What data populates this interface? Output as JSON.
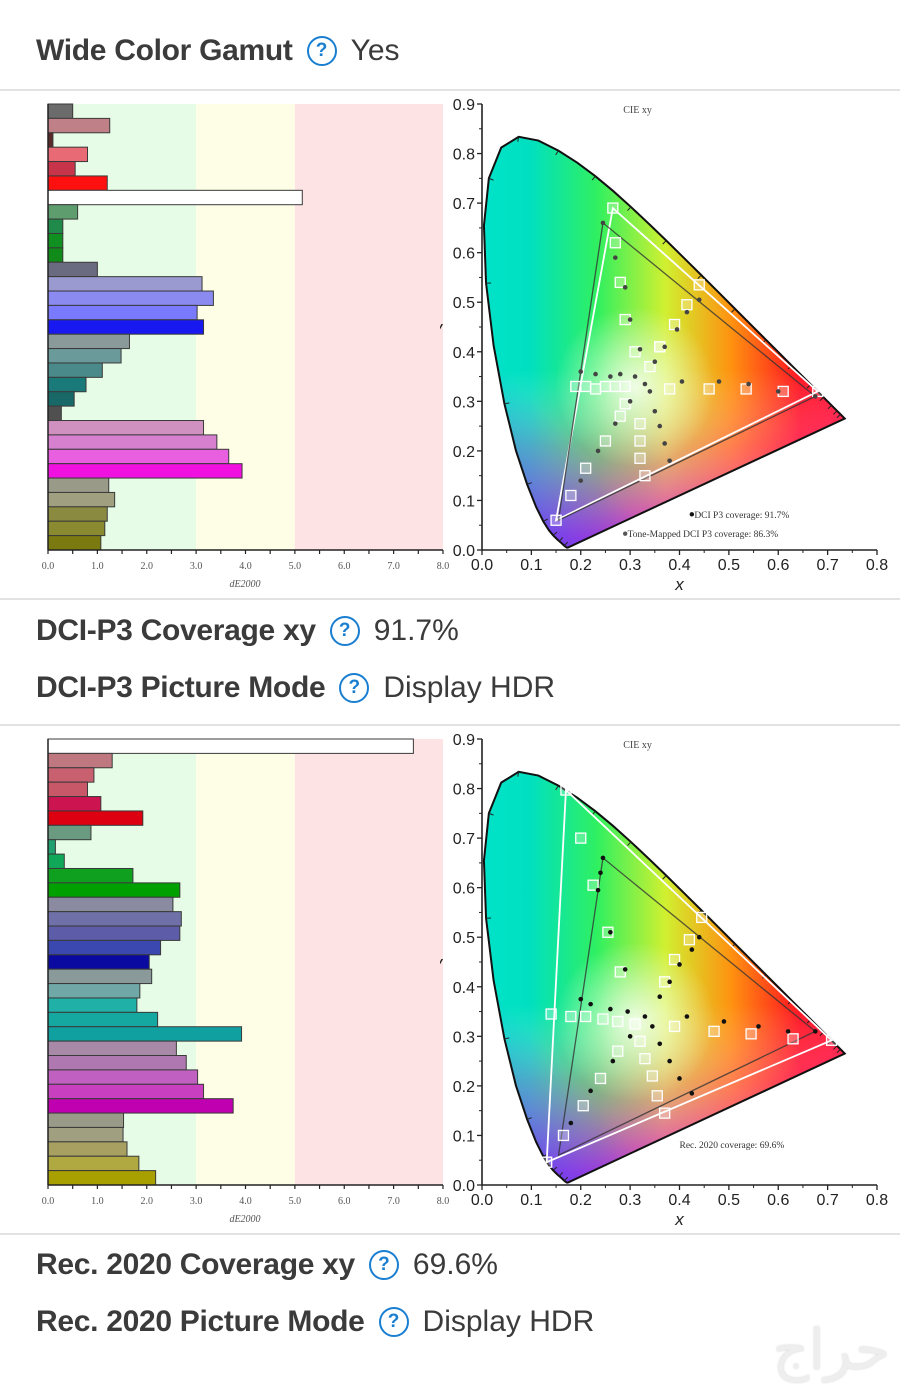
{
  "rows": {
    "wide_color_gamut": {
      "label": "Wide Color Gamut",
      "help_icon": "question-circle-icon",
      "value": "Yes"
    },
    "dci_p3_coverage": {
      "label": "DCI-P3 Coverage xy",
      "help_icon": "question-circle-icon",
      "value": "91.7%"
    },
    "dci_p3_picture_mode": {
      "label": "DCI-P3 Picture Mode",
      "help_icon": "question-circle-icon",
      "value": "Display HDR"
    },
    "rec2020_coverage": {
      "label": "Rec. 2020 Coverage xy",
      "help_icon": "question-circle-icon",
      "value": "69.6%"
    },
    "rec2020_picture_mode": {
      "label": "Rec. 2020 Picture Mode",
      "help_icon": "question-circle-icon",
      "value": "Display HDR"
    }
  },
  "colors": {
    "accent": "#1a7fd0",
    "zone_good": "#e6fce6",
    "zone_ok": "#fefee6",
    "zone_bad": "#fde3e3"
  },
  "watermark": "حراج",
  "chart_data": [
    {
      "type": "bar",
      "orientation": "horizontal",
      "title": "",
      "xlabel": "dE2000",
      "ylabel": "",
      "xlim": [
        0,
        8
      ],
      "xticks": [
        "0.0",
        "1.0",
        "2.0",
        "3.0",
        "4.0",
        "5.0",
        "6.0",
        "7.0",
        "8.0"
      ],
      "zones": [
        {
          "from": 0,
          "to": 3,
          "color": "#e6fce6"
        },
        {
          "from": 3,
          "to": 5,
          "color": "#fefee6"
        },
        {
          "from": 5,
          "to": 8,
          "color": "#fde3e3"
        }
      ],
      "values": [
        0.5,
        1.25,
        0.1,
        0.8,
        0.55,
        1.2,
        5.15,
        0.6,
        0.3,
        0.3,
        0.3,
        1.0,
        3.12,
        3.35,
        3.02,
        3.15,
        1.65,
        1.48,
        1.1,
        0.77,
        0.53,
        0.27,
        3.15,
        3.42,
        3.66,
        3.93,
        1.23,
        1.35,
        1.2,
        1.15,
        1.07
      ],
      "bar_colors": [
        "#6b6b6b",
        "#c08088",
        "#5a2a2a",
        "#e86a74",
        "#c8344a",
        "#ff1010",
        "#ffffff",
        "#5e9e6e",
        "#208a4a",
        "#109020",
        "#108a18",
        "#6a6a80",
        "#9a9ad0",
        "#8a8af0",
        "#7a7aff",
        "#1818f0",
        "#8a9a9a",
        "#6a9a9a",
        "#4a8a8a",
        "#1a7a7a",
        "#186868",
        "#505050",
        "#d090c0",
        "#d880d0",
        "#e860e0",
        "#f010e0",
        "#9a9a88",
        "#a0a080",
        "#8a8a40",
        "#8a8a30",
        "#7a7a10"
      ]
    },
    {
      "type": "scatter",
      "title": "CIE xy",
      "xlabel": "x",
      "ylabel": "y",
      "xlim": [
        0,
        0.8
      ],
      "ylim": [
        0,
        0.9
      ],
      "xticks": [
        "0.0",
        "0.1",
        "0.2",
        "0.3",
        "0.4",
        "0.5",
        "0.6",
        "0.7",
        "0.8"
      ],
      "yticks": [
        "0.0",
        "0.1",
        "0.2",
        "0.3",
        "0.4",
        "0.5",
        "0.6",
        "0.7",
        "0.8",
        "0.9"
      ],
      "gamut_triangle_target": [
        [
          0.68,
          0.32
        ],
        [
          0.265,
          0.69
        ],
        [
          0.15,
          0.06
        ]
      ],
      "gamut_triangle_measured": [
        [
          0.675,
          0.31
        ],
        [
          0.245,
          0.66
        ],
        [
          0.155,
          0.06
        ]
      ],
      "legend": [
        "DCI P3 coverage: 91.7%",
        "Tone-Mapped DCI P3 coverage: 86.3%"
      ],
      "targets": [
        [
          0.265,
          0.69
        ],
        [
          0.27,
          0.62
        ],
        [
          0.28,
          0.54
        ],
        [
          0.29,
          0.465
        ],
        [
          0.31,
          0.4
        ],
        [
          0.34,
          0.37
        ],
        [
          0.36,
          0.41
        ],
        [
          0.19,
          0.33
        ],
        [
          0.21,
          0.33
        ],
        [
          0.23,
          0.325
        ],
        [
          0.25,
          0.33
        ],
        [
          0.27,
          0.33
        ],
        [
          0.29,
          0.33
        ],
        [
          0.38,
          0.325
        ],
        [
          0.46,
          0.325
        ],
        [
          0.535,
          0.325
        ],
        [
          0.61,
          0.32
        ],
        [
          0.68,
          0.32
        ],
        [
          0.29,
          0.295
        ],
        [
          0.28,
          0.27
        ],
        [
          0.32,
          0.255
        ],
        [
          0.32,
          0.22
        ],
        [
          0.32,
          0.185
        ],
        [
          0.33,
          0.15
        ],
        [
          0.25,
          0.22
        ],
        [
          0.21,
          0.165
        ],
        [
          0.18,
          0.11
        ],
        [
          0.15,
          0.06
        ],
        [
          0.44,
          0.535
        ],
        [
          0.415,
          0.495
        ],
        [
          0.39,
          0.455
        ],
        [
          0.36,
          0.41
        ]
      ],
      "measured": [
        [
          0.245,
          0.66
        ],
        [
          0.27,
          0.59
        ],
        [
          0.29,
          0.53
        ],
        [
          0.3,
          0.465
        ],
        [
          0.32,
          0.405
        ],
        [
          0.35,
          0.38
        ],
        [
          0.37,
          0.41
        ],
        [
          0.2,
          0.36
        ],
        [
          0.23,
          0.355
        ],
        [
          0.26,
          0.35
        ],
        [
          0.28,
          0.355
        ],
        [
          0.31,
          0.35
        ],
        [
          0.33,
          0.335
        ],
        [
          0.405,
          0.34
        ],
        [
          0.48,
          0.34
        ],
        [
          0.54,
          0.335
        ],
        [
          0.6,
          0.32
        ],
        [
          0.675,
          0.31
        ],
        [
          0.3,
          0.3
        ],
        [
          0.34,
          0.32
        ],
        [
          0.35,
          0.28
        ],
        [
          0.36,
          0.25
        ],
        [
          0.37,
          0.215
        ],
        [
          0.38,
          0.18
        ],
        [
          0.27,
          0.255
        ],
        [
          0.235,
          0.2
        ],
        [
          0.2,
          0.14
        ],
        [
          0.415,
          0.48
        ],
        [
          0.395,
          0.445
        ],
        [
          0.44,
          0.505
        ]
      ]
    },
    {
      "type": "bar",
      "orientation": "horizontal",
      "title": "",
      "xlabel": "dE2000",
      "ylabel": "",
      "xlim": [
        0,
        8
      ],
      "xticks": [
        "0.0",
        "1.0",
        "2.0",
        "3.0",
        "4.0",
        "5.0",
        "6.0",
        "7.0",
        "8.0"
      ],
      "zones": [
        {
          "from": 0,
          "to": 3,
          "color": "#e6fce6"
        },
        {
          "from": 3,
          "to": 5,
          "color": "#fefee6"
        },
        {
          "from": 5,
          "to": 8,
          "color": "#fde3e3"
        }
      ],
      "values": [
        7.4,
        1.3,
        0.93,
        0.8,
        1.07,
        1.92,
        0.87,
        0.15,
        0.33,
        1.72,
        2.67,
        2.53,
        2.7,
        2.67,
        2.28,
        2.05,
        2.1,
        1.86,
        1.8,
        2.22,
        3.92,
        2.6,
        2.8,
        3.03,
        3.15,
        3.75,
        1.53,
        1.52,
        1.6,
        1.84,
        2.18
      ],
      "bar_colors": [
        "#ffffff",
        "#c07880",
        "#c86070",
        "#c85868",
        "#cc1450",
        "#dd0010",
        "#6a9a80",
        "#20a070",
        "#10a858",
        "#10a020",
        "#00a000",
        "#8a8aa0",
        "#7070a8",
        "#5c5ca8",
        "#3a48b0",
        "#0a0aa0",
        "#8a9a9a",
        "#70a8a8",
        "#20b0a8",
        "#14a8a0",
        "#10a0a0",
        "#a88aa8",
        "#b078b0",
        "#c060c0",
        "#c840c0",
        "#c000b0",
        "#9a9a88",
        "#a0a080",
        "#a8a060",
        "#b0a840",
        "#a8a000"
      ]
    },
    {
      "type": "scatter",
      "title": "CIE xy",
      "xlabel": "x",
      "ylabel": "y",
      "xlim": [
        0,
        0.8
      ],
      "ylim": [
        0,
        0.9
      ],
      "xticks": [
        "0.0",
        "0.1",
        "0.2",
        "0.3",
        "0.4",
        "0.5",
        "0.6",
        "0.7",
        "0.8"
      ],
      "yticks": [
        "0.0",
        "0.1",
        "0.2",
        "0.3",
        "0.4",
        "0.5",
        "0.6",
        "0.7",
        "0.8",
        "0.9"
      ],
      "gamut_triangle_target": [
        [
          0.708,
          0.292
        ],
        [
          0.17,
          0.797
        ],
        [
          0.131,
          0.046
        ]
      ],
      "gamut_triangle_measured": [
        [
          0.675,
          0.31
        ],
        [
          0.245,
          0.66
        ],
        [
          0.155,
          0.06
        ]
      ],
      "legend": [
        "Rec. 2020 coverage: 69.6%"
      ],
      "targets": [
        [
          0.17,
          0.797
        ],
        [
          0.2,
          0.7
        ],
        [
          0.225,
          0.605
        ],
        [
          0.255,
          0.51
        ],
        [
          0.28,
          0.43
        ],
        [
          0.14,
          0.345
        ],
        [
          0.18,
          0.34
        ],
        [
          0.21,
          0.34
        ],
        [
          0.245,
          0.335
        ],
        [
          0.275,
          0.33
        ],
        [
          0.31,
          0.325
        ],
        [
          0.39,
          0.32
        ],
        [
          0.47,
          0.31
        ],
        [
          0.545,
          0.305
        ],
        [
          0.63,
          0.295
        ],
        [
          0.708,
          0.292
        ],
        [
          0.32,
          0.29
        ],
        [
          0.275,
          0.27
        ],
        [
          0.33,
          0.255
        ],
        [
          0.345,
          0.22
        ],
        [
          0.355,
          0.18
        ],
        [
          0.37,
          0.145
        ],
        [
          0.24,
          0.215
        ],
        [
          0.205,
          0.16
        ],
        [
          0.165,
          0.1
        ],
        [
          0.131,
          0.046
        ],
        [
          0.445,
          0.54
        ],
        [
          0.42,
          0.495
        ],
        [
          0.39,
          0.455
        ],
        [
          0.37,
          0.41
        ]
      ],
      "measured": [
        [
          0.245,
          0.66
        ],
        [
          0.24,
          0.63
        ],
        [
          0.235,
          0.595
        ],
        [
          0.26,
          0.51
        ],
        [
          0.29,
          0.435
        ],
        [
          0.2,
          0.375
        ],
        [
          0.22,
          0.365
        ],
        [
          0.26,
          0.355
        ],
        [
          0.295,
          0.35
        ],
        [
          0.33,
          0.34
        ],
        [
          0.345,
          0.32
        ],
        [
          0.36,
          0.38
        ],
        [
          0.38,
          0.41
        ],
        [
          0.415,
          0.34
        ],
        [
          0.49,
          0.33
        ],
        [
          0.56,
          0.32
        ],
        [
          0.62,
          0.31
        ],
        [
          0.675,
          0.31
        ],
        [
          0.3,
          0.3
        ],
        [
          0.36,
          0.285
        ],
        [
          0.265,
          0.25
        ],
        [
          0.38,
          0.25
        ],
        [
          0.4,
          0.215
        ],
        [
          0.425,
          0.185
        ],
        [
          0.22,
          0.19
        ],
        [
          0.18,
          0.125
        ],
        [
          0.44,
          0.5
        ],
        [
          0.425,
          0.475
        ],
        [
          0.4,
          0.445
        ]
      ]
    }
  ]
}
